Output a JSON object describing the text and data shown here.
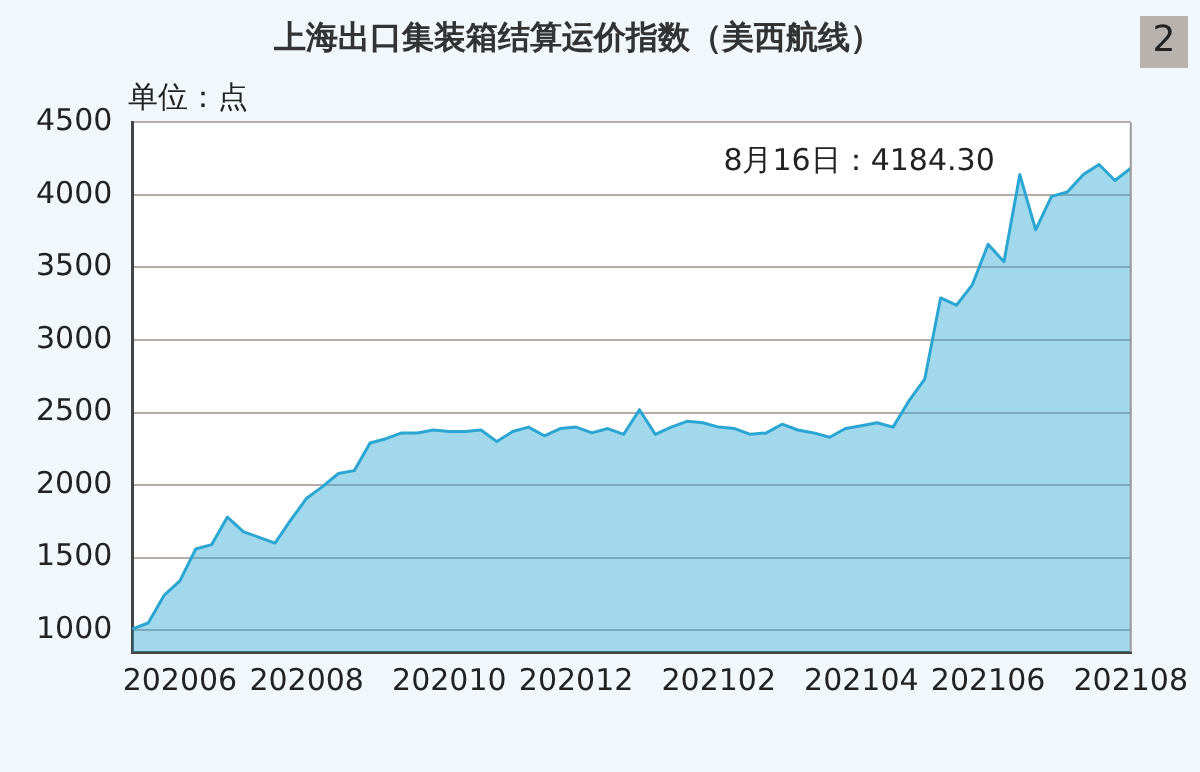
{
  "chart_data": {
    "type": "area",
    "title": "上海出口集装箱结算运价指数（美西航线）",
    "ylabel": "单位：点",
    "categories": [
      null,
      null,
      null,
      "202006",
      null,
      null,
      null,
      null,
      null,
      null,
      null,
      "202008",
      null,
      null,
      null,
      null,
      null,
      null,
      null,
      null,
      "202010",
      null,
      null,
      null,
      null,
      null,
      null,
      null,
      "202012",
      null,
      null,
      null,
      null,
      null,
      null,
      null,
      null,
      "202102",
      null,
      null,
      null,
      null,
      null,
      null,
      null,
      null,
      "202104",
      null,
      null,
      null,
      null,
      null,
      null,
      null,
      "202106",
      null,
      null,
      null,
      null,
      null,
      null,
      null,
      null,
      "202108"
    ],
    "series": [
      {
        "color": "#2ba6d3",
        "values": [
          1010,
          1050,
          1240,
          1340,
          1560,
          1590,
          1780,
          1680,
          1640,
          1600,
          1760,
          1910,
          1990,
          2080,
          2100,
          2290,
          2320,
          2360,
          2360,
          2380,
          2370,
          2370,
          2380,
          2300,
          2370,
          2400,
          2340,
          2390,
          2400,
          2360,
          2390,
          2350,
          2520,
          2350,
          2400,
          2440,
          2430,
          2400,
          2390,
          2350,
          2360,
          2420,
          2380,
          2360,
          2330,
          2390,
          2410,
          2430,
          2400,
          2580,
          2730,
          3290,
          3240,
          3380,
          3660,
          3540,
          4140,
          3760,
          3990,
          4020,
          4140,
          4210,
          4100,
          4184.3
        ]
      }
    ],
    "ylim": [
      850,
      4500
    ],
    "yticks": [
      1000,
      1500,
      2000,
      2500,
      3000,
      3500,
      4000,
      4500
    ],
    "grid": "y",
    "legend": false,
    "annotations": [
      "8月16日：4184.30",
      "2"
    ]
  }
}
